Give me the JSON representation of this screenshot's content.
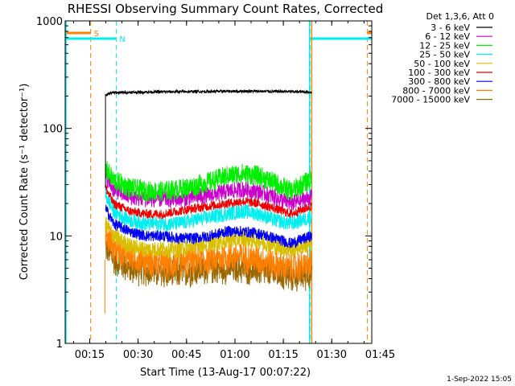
{
  "chart_data": {
    "type": "line",
    "title": "RHESSI Observing Summary Count Rates, Corrected",
    "xlabel": "Start Time (13-Aug-17 00:07:22)",
    "ylabel": "Corrected Count Rate (s⁻¹ detector⁻¹)",
    "x_unit": "minutes after 00:07:22",
    "xlim": [
      0,
      95
    ],
    "ylim": [
      1,
      1000
    ],
    "yscale": "log",
    "xticks": [
      {
        "x": 7.6,
        "label": "00:15"
      },
      {
        "x": 22.6,
        "label": "00:30"
      },
      {
        "x": 37.6,
        "label": "00:45"
      },
      {
        "x": 52.6,
        "label": "01:00"
      },
      {
        "x": 67.6,
        "label": "01:15"
      },
      {
        "x": 82.6,
        "label": "01:30"
      },
      {
        "x": 97.6,
        "label": "01:45"
      }
    ],
    "yticks": [
      {
        "y": 1,
        "label": "1"
      },
      {
        "y": 10,
        "label": "10"
      },
      {
        "y": 100,
        "label": "100"
      },
      {
        "y": 1000,
        "label": "1000"
      }
    ],
    "legend_header": "Det 1,3,6, Att 0",
    "legend_placement": "top-right, outside plot",
    "series": [
      {
        "name": "3 - 6 keV",
        "color": "#000000",
        "x": [
          12.5,
          13,
          15,
          25,
          40,
          55,
          70,
          76.4
        ],
        "y": [
          200,
          210,
          215,
          218,
          220,
          222,
          220,
          218
        ]
      },
      {
        "name": "6 - 12 keV",
        "color": "#cc00cc",
        "x": [
          12.5,
          15,
          20,
          25,
          30,
          35,
          40,
          45,
          50,
          55,
          60,
          65,
          70,
          76.4
        ],
        "y": [
          36,
          27,
          23,
          22,
          22,
          22,
          23,
          24,
          26,
          27,
          26,
          23,
          20,
          23
        ]
      },
      {
        "name": "12 - 25 keV",
        "color": "#00ee00",
        "x": [
          12.5,
          15,
          20,
          25,
          30,
          35,
          40,
          45,
          50,
          55,
          60,
          65,
          70,
          76.4
        ],
        "y": [
          42,
          33,
          28,
          26,
          26,
          27,
          29,
          32,
          36,
          38,
          36,
          31,
          26,
          34
        ]
      },
      {
        "name": "25 - 50 keV",
        "color": "#00eeee",
        "x": [
          12.5,
          15,
          20,
          25,
          30,
          35,
          40,
          45,
          50,
          55,
          60,
          65,
          70,
          76.4
        ],
        "y": [
          24,
          17,
          14,
          13,
          13,
          13,
          14,
          15,
          16,
          17,
          16,
          14,
          13,
          15
        ]
      },
      {
        "name": "50 - 100 keV",
        "color": "#d8c000",
        "x": [
          12.5,
          15,
          20,
          25,
          30,
          35,
          40,
          45,
          50,
          55,
          60,
          65,
          70,
          76.4
        ],
        "y": [
          13,
          10,
          8,
          7.5,
          7.5,
          7.5,
          8,
          8.5,
          9,
          9.5,
          9,
          8,
          7.5,
          8.5
        ]
      },
      {
        "name": "100 - 300 keV",
        "color": "#ee0000",
        "x": [
          12.5,
          15,
          20,
          25,
          30,
          35,
          40,
          45,
          50,
          55,
          60,
          65,
          70,
          76.4
        ],
        "y": [
          28,
          20,
          17,
          16,
          16,
          17,
          18,
          19,
          20,
          21,
          20,
          18,
          16,
          19
        ]
      },
      {
        "name": "300 - 800 keV",
        "color": "#0000ee",
        "x": [
          12.5,
          15,
          20,
          25,
          30,
          35,
          40,
          45,
          50,
          55,
          60,
          65,
          70,
          76.4
        ],
        "y": [
          18,
          13,
          11,
          10,
          10,
          9.5,
          9.5,
          10,
          11,
          11,
          10.5,
          9.5,
          8.5,
          10
        ]
      },
      {
        "name": "800 - 7000 keV",
        "color": "#ff8000",
        "x": [
          12.5,
          15,
          20,
          25,
          30,
          35,
          40,
          45,
          50,
          55,
          60,
          65,
          70,
          76.4
        ],
        "y": [
          10,
          8,
          6.5,
          6,
          5.5,
          5.5,
          6,
          6,
          6.5,
          6.5,
          6,
          5.5,
          5,
          5.5
        ]
      },
      {
        "name": "7000 - 15000 keV",
        "color": "#996600",
        "x": [
          12.5,
          15,
          20,
          25,
          30,
          35,
          40,
          45,
          50,
          55,
          60,
          65,
          70,
          76.4
        ],
        "y": [
          8,
          6,
          5,
          4.8,
          4.5,
          4.5,
          4.8,
          5,
          5,
          5,
          4.8,
          4.5,
          4.2,
          4.5
        ]
      }
    ],
    "markers": [
      {
        "label": "S",
        "color": "#ff8000",
        "x_start": 7.9,
        "x_end": 93.6
      },
      {
        "label": "N",
        "color": "#00eeee",
        "x_start": 15.8,
        "x_end": 75.9
      }
    ],
    "footer": "1-Sep-2022 15:05"
  }
}
